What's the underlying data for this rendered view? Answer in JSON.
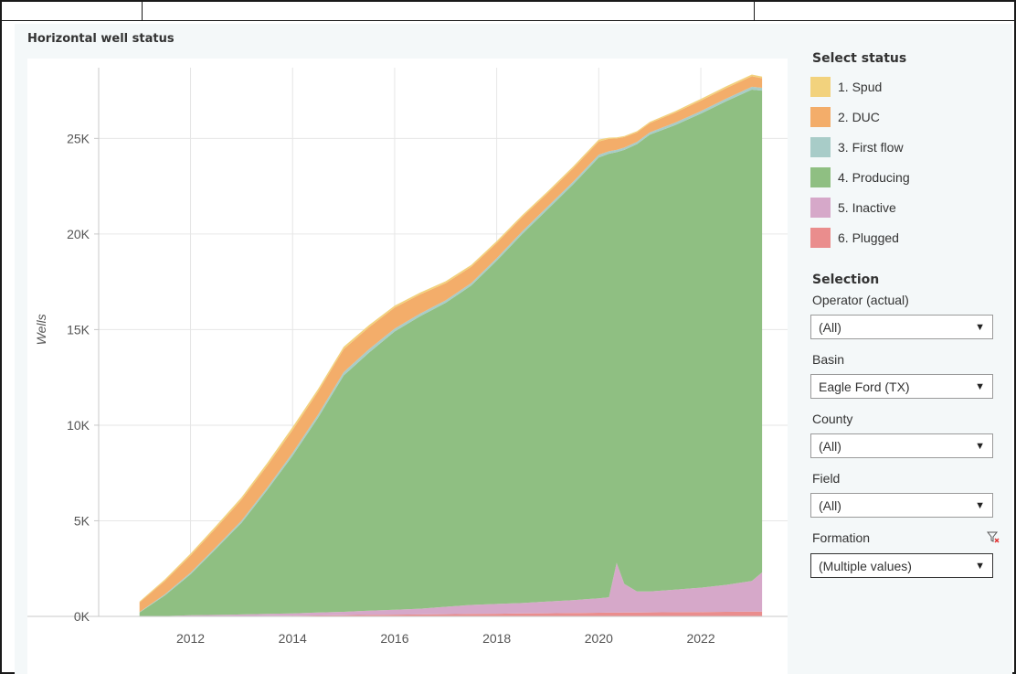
{
  "dashboard": {
    "title": "Horizontal well status"
  },
  "legend": {
    "title": "Select status",
    "items": [
      {
        "label": "1. Spud",
        "color": "#f2d27d"
      },
      {
        "label": "2. DUC",
        "color": "#f3ad6a"
      },
      {
        "label": "3. First flow",
        "color": "#a8ccc8"
      },
      {
        "label": "4. Producing",
        "color": "#8fbf82"
      },
      {
        "label": "5. Inactive",
        "color": "#d6a8c9"
      },
      {
        "label": "6. Plugged",
        "color": "#ea8d8d"
      }
    ]
  },
  "filters": {
    "title": "Selection",
    "items": [
      {
        "label": "Operator (actual)",
        "value": "(All)",
        "active": false
      },
      {
        "label": "Basin",
        "value": "Eagle Ford (TX)",
        "active": false
      },
      {
        "label": "County",
        "value": "(All)",
        "active": false
      },
      {
        "label": "Field",
        "value": "(All)",
        "active": false
      },
      {
        "label": "Formation",
        "value": "(Multiple values)",
        "active": true
      }
    ],
    "clear_icon": "filter-clear-icon"
  },
  "chart_data": {
    "type": "area",
    "stacked": true,
    "title": "",
    "xlabel": "",
    "ylabel": "Wells",
    "xlim": [
      2010.2,
      2023.7
    ],
    "ylim": [
      0,
      28700
    ],
    "x_ticks": [
      2012,
      2014,
      2016,
      2018,
      2020,
      2022
    ],
    "x_tick_labels": [
      "2012",
      "2014",
      "2016",
      "2018",
      "2020",
      "2022"
    ],
    "y_ticks": [
      0,
      5000,
      10000,
      15000,
      20000,
      25000
    ],
    "y_tick_labels": [
      "0K",
      "5K",
      "10K",
      "15K",
      "20K",
      "25K"
    ],
    "grid": true,
    "legend_position": "right",
    "x": [
      2011.0,
      2011.5,
      2012.0,
      2012.5,
      2013.0,
      2013.5,
      2014.0,
      2014.5,
      2015.0,
      2015.5,
      2016.0,
      2016.5,
      2017.0,
      2017.5,
      2018.0,
      2018.5,
      2019.0,
      2019.5,
      2020.0,
      2020.2,
      2020.35,
      2020.5,
      2020.75,
      2021.0,
      2021.5,
      2022.0,
      2022.5,
      2023.0,
      2023.2
    ],
    "series": [
      {
        "name": "6. Plugged",
        "values": [
          0,
          0,
          10,
          15,
          20,
          30,
          40,
          50,
          60,
          75,
          90,
          100,
          115,
          130,
          140,
          155,
          165,
          175,
          190,
          195,
          198,
          200,
          205,
          210,
          220,
          230,
          240,
          250,
          250
        ]
      },
      {
        "name": "5. Inactive",
        "values": [
          0,
          20,
          50,
          60,
          80,
          100,
          120,
          150,
          180,
          225,
          260,
          300,
          385,
          470,
          510,
          545,
          615,
          675,
          750,
          805,
          2600,
          1500,
          1095,
          1090,
          1180,
          1270,
          1410,
          1600,
          2050
        ]
      },
      {
        "name": "4. Producing",
        "values": [
          200,
          1080,
          2140,
          3465,
          4800,
          6470,
          8240,
          10200,
          12360,
          13500,
          14550,
          15300,
          15900,
          16700,
          17950,
          19300,
          20520,
          21750,
          23060,
          23200,
          21480,
          22700,
          23400,
          23900,
          24300,
          24800,
          25300,
          25700,
          25200
        ]
      },
      {
        "name": "3. First flow",
        "values": [
          30,
          60,
          80,
          90,
          110,
          120,
          150,
          160,
          170,
          180,
          150,
          140,
          130,
          130,
          130,
          140,
          140,
          140,
          140,
          130,
          120,
          120,
          120,
          120,
          130,
          130,
          140,
          150,
          150
        ]
      },
      {
        "name": "2. DUC",
        "values": [
          500,
          700,
          900,
          1000,
          1100,
          1150,
          1200,
          1200,
          1200,
          1150,
          1100,
          1000,
          900,
          850,
          800,
          750,
          700,
          700,
          700,
          650,
          600,
          550,
          500,
          480,
          520,
          550,
          550,
          550,
          500
        ]
      },
      {
        "name": "1. Spud",
        "values": [
          50,
          80,
          100,
          110,
          120,
          140,
          150,
          140,
          130,
          110,
          100,
          100,
          100,
          100,
          100,
          100,
          100,
          100,
          100,
          60,
          50,
          50,
          60,
          70,
          80,
          90,
          90,
          90,
          80
        ]
      }
    ]
  }
}
